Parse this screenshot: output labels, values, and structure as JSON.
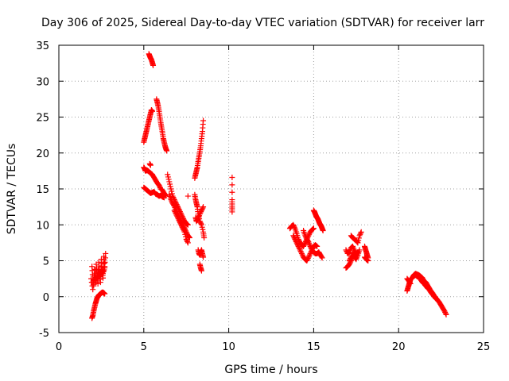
{
  "chart_data": {
    "type": "scatter",
    "title": "Day 306 of 2025, Sidereal Day-to-day VTEC variation (SDTVAR) for receiver larr",
    "xlabel": "GPS time / hours",
    "ylabel": "SDTVAR / TECUs",
    "xlim": [
      0,
      25
    ],
    "ylim": [
      -5,
      35
    ],
    "x_ticks": [
      0,
      5,
      10,
      15,
      20,
      25
    ],
    "y_ticks": [
      -5,
      0,
      5,
      10,
      15,
      20,
      25,
      30,
      35
    ],
    "grid": true,
    "marker": "+",
    "marker_color": "#ff0000",
    "series": [
      {
        "name": "SDTVAR",
        "segments": [
          {
            "x": [
              1.95,
              2.0,
              2.05,
              2.1,
              2.15,
              2.2,
              2.25,
              2.3,
              2.35,
              2.4,
              2.45,
              2.5,
              2.55,
              2.6,
              2.65,
              2.7,
              2.75
            ],
            "y": [
              4.2,
              2.5,
              1.5,
              3.8,
              2.2,
              4.5,
              3.0,
              1.8,
              4.8,
              3.2,
              2.0,
              5.2,
              3.6,
              2.6,
              5.6,
              4.2,
              6.0
            ]
          },
          {
            "x": [
              1.9,
              2.0,
              2.1,
              2.2,
              2.3,
              2.4,
              2.5,
              2.6,
              2.7
            ],
            "y": [
              2.5,
              1.0,
              3.0,
              2.0,
              3.5,
              2.8,
              3.8,
              3.2,
              4.0
            ]
          },
          {
            "x": [
              1.95,
              2.0,
              2.05,
              2.1,
              2.15,
              2.2,
              2.25,
              2.3,
              2.35,
              2.4,
              2.45,
              2.5,
              2.55,
              2.6,
              2.65,
              2.7
            ],
            "y": [
              -3.0,
              -2.6,
              -2.0,
              -1.5,
              -1.0,
              -0.6,
              -0.2,
              0.0,
              0.2,
              0.3,
              0.4,
              0.5,
              0.6,
              0.6,
              0.5,
              0.4
            ]
          },
          {
            "x": [
              5.0,
              5.05,
              5.1,
              5.15,
              5.2,
              5.25,
              5.3,
              5.35,
              5.4,
              5.45,
              5.5
            ],
            "y": [
              21.5,
              22.0,
              22.5,
              23.0,
              23.5,
              24.0,
              24.5,
              25.0,
              25.5,
              26.0,
              25.8
            ]
          },
          {
            "x": [
              5.3,
              5.35,
              5.4,
              5.45,
              5.5,
              5.55
            ],
            "y": [
              33.8,
              33.5,
              33.2,
              33.0,
              32.6,
              32.2
            ]
          },
          {
            "x": [
              5.75,
              5.8,
              5.85,
              5.9,
              5.95,
              6.0,
              6.05,
              6.1,
              6.15,
              6.2,
              6.25,
              6.3,
              6.35
            ],
            "y": [
              27.5,
              27.0,
              26.5,
              25.8,
              25.0,
              24.2,
              23.5,
              22.8,
              22.0,
              21.5,
              21.0,
              20.6,
              20.3
            ]
          },
          {
            "x": [
              5.0,
              5.05,
              5.1,
              5.2,
              5.3,
              5.4,
              5.5,
              5.6,
              5.7,
              5.8,
              5.9,
              6.0,
              6.1,
              6.2,
              6.3
            ],
            "y": [
              18.0,
              17.8,
              17.5,
              17.6,
              17.4,
              17.2,
              17.0,
              16.6,
              16.2,
              15.8,
              15.5,
              15.0,
              14.8,
              14.4,
              14.0
            ]
          },
          {
            "x": [
              5.35,
              5.4
            ],
            "y": [
              18.5,
              18.3
            ]
          },
          {
            "x": [
              5.0,
              5.1,
              5.2,
              5.3,
              5.4,
              5.5,
              5.6,
              5.7,
              5.8,
              5.9,
              6.0,
              6.1,
              6.2
            ],
            "y": [
              15.2,
              15.0,
              14.8,
              14.6,
              14.4,
              14.5,
              14.6,
              14.3,
              14.2,
              14.0,
              14.1,
              13.9,
              13.8
            ]
          },
          {
            "x": [
              6.4,
              6.5,
              6.6,
              6.7,
              6.8,
              6.9,
              7.0,
              7.1,
              7.2,
              7.3,
              7.4,
              7.5,
              7.6
            ],
            "y": [
              17.0,
              16.0,
              15.0,
              14.0,
              13.5,
              13.0,
              12.5,
              12.0,
              11.5,
              11.0,
              10.5,
              10.2,
              10.0
            ]
          },
          {
            "x": [
              6.5,
              6.6,
              6.7,
              6.8,
              6.9,
              7.0,
              7.1,
              7.2,
              7.3,
              7.4,
              7.5,
              7.6,
              7.7
            ],
            "y": [
              14.2,
              13.5,
              13.0,
              12.6,
              12.0,
              11.5,
              11.0,
              10.5,
              10.0,
              9.5,
              9.0,
              8.5,
              8.2
            ]
          },
          {
            "x": [
              6.8,
              6.9,
              7.0,
              7.1,
              7.2,
              7.3,
              7.4,
              7.5,
              7.6
            ],
            "y": [
              12.0,
              11.5,
              11.0,
              10.5,
              10.0,
              9.5,
              9.0,
              8.0,
              7.5
            ]
          },
          {
            "x": [
              7.6
            ],
            "y": [
              14.0
            ]
          },
          {
            "x": [
              8.0,
              8.05,
              8.1,
              8.15,
              8.2,
              8.25,
              8.3,
              8.35,
              8.4,
              8.45,
              8.5
            ],
            "y": [
              16.5,
              17.0,
              17.5,
              18.0,
              18.8,
              19.5,
              20.2,
              21.0,
              22.0,
              23.0,
              24.5
            ]
          },
          {
            "x": [
              8.0,
              8.05,
              8.1,
              8.15,
              8.2,
              8.3,
              8.4,
              8.5,
              8.55
            ],
            "y": [
              14.2,
              13.5,
              13.0,
              12.5,
              11.5,
              10.5,
              10.0,
              9.0,
              8.2
            ]
          },
          {
            "x": [
              8.05,
              8.1,
              8.2,
              8.3,
              8.4,
              8.5
            ],
            "y": [
              11.0,
              10.5,
              10.8,
              11.5,
              12.0,
              12.5
            ]
          },
          {
            "x": [
              8.2,
              8.25,
              8.3,
              8.35,
              8.4,
              8.45,
              8.5
            ],
            "y": [
              6.5,
              6.0,
              5.8,
              6.2,
              6.5,
              6.0,
              5.5
            ]
          },
          {
            "x": [
              8.3,
              8.35,
              8.4
            ],
            "y": [
              4.5,
              4.0,
              3.6
            ]
          },
          {
            "x": [
              10.2,
              10.2,
              10.2,
              10.2
            ],
            "y": [
              16.6,
              13.5,
              12.6,
              11.8
            ]
          },
          {
            "x": [
              13.6,
              13.7,
              13.8,
              13.9,
              14.0,
              14.1,
              14.2,
              14.3,
              14.4,
              14.5,
              14.6,
              14.7,
              14.8,
              14.9,
              15.0
            ],
            "y": [
              9.5,
              9.8,
              10.0,
              9.5,
              8.8,
              8.0,
              7.5,
              7.2,
              7.0,
              7.5,
              8.0,
              8.5,
              9.0,
              9.3,
              9.5
            ]
          },
          {
            "x": [
              13.8,
              13.9,
              14.0,
              14.1,
              14.2,
              14.3,
              14.4,
              14.5,
              14.6,
              14.7,
              14.8,
              14.9,
              15.0,
              15.1,
              15.2
            ],
            "y": [
              8.5,
              8.0,
              7.5,
              7.0,
              6.5,
              6.0,
              5.5,
              5.2,
              5.0,
              5.5,
              6.0,
              6.5,
              7.0,
              7.2,
              7.0
            ]
          },
          {
            "x": [
              14.4,
              14.5,
              14.6,
              14.7,
              14.8,
              14.9,
              15.0,
              15.1,
              15.2,
              15.3,
              15.4,
              15.5
            ],
            "y": [
              9.2,
              8.5,
              8.0,
              7.6,
              7.0,
              6.5,
              6.2,
              6.0,
              6.0,
              6.2,
              5.8,
              5.4
            ]
          },
          {
            "x": [
              15.0,
              15.05,
              15.1,
              15.15,
              15.2,
              15.25,
              15.3,
              15.35,
              15.4,
              15.45,
              15.5,
              15.55
            ],
            "y": [
              12.0,
              11.8,
              11.5,
              11.2,
              11.0,
              10.8,
              10.5,
              10.2,
              10.0,
              9.8,
              9.5,
              9.2
            ]
          },
          {
            "x": [
              16.9,
              17.0,
              17.1,
              17.2,
              17.3,
              17.4
            ],
            "y": [
              4.0,
              4.2,
              4.5,
              5.0,
              5.5,
              6.0
            ]
          },
          {
            "x": [
              16.9,
              17.0,
              17.1,
              17.2,
              17.3,
              17.4,
              17.5,
              17.6
            ],
            "y": [
              6.5,
              6.0,
              6.2,
              6.8,
              7.0,
              6.4,
              6.0,
              6.2
            ]
          },
          {
            "x": [
              17.2,
              17.3,
              17.4,
              17.5,
              17.6,
              17.7,
              17.8
            ],
            "y": [
              8.5,
              8.2,
              8.0,
              7.8,
              7.5,
              8.5,
              9.0
            ]
          },
          {
            "x": [
              17.1,
              17.2,
              17.3,
              17.4,
              17.5,
              17.6,
              17.7
            ],
            "y": [
              5.0,
              5.5,
              6.0,
              5.5,
              5.2,
              5.8,
              6.5
            ]
          },
          {
            "x": [
              18.0,
              18.05,
              18.1,
              18.15,
              18.2
            ],
            "y": [
              7.0,
              6.6,
              6.2,
              5.8,
              5.4
            ]
          },
          {
            "x": [
              18.0,
              18.1,
              18.2
            ],
            "y": [
              5.5,
              5.2,
              5.0
            ]
          },
          {
            "x": [
              20.5,
              20.55,
              20.6,
              20.65,
              20.7,
              20.75,
              20.8,
              20.85,
              20.9,
              20.95,
              21.0,
              21.1,
              21.2,
              21.3,
              21.4
            ],
            "y": [
              0.8,
              1.2,
              1.6,
              2.0,
              2.4,
              2.5,
              2.6,
              2.8,
              3.0,
              3.1,
              3.2,
              3.1,
              3.0,
              2.8,
              2.6
            ]
          },
          {
            "x": [
              20.5,
              20.6,
              20.7
            ],
            "y": [
              2.5,
              2.2,
              1.8
            ]
          },
          {
            "x": [
              21.0,
              21.1,
              21.2,
              21.3,
              21.4,
              21.5,
              21.6,
              21.7,
              21.8,
              21.9,
              22.0,
              22.1,
              22.2,
              22.3,
              22.4,
              22.5,
              22.6,
              22.7,
              22.8
            ],
            "y": [
              3.0,
              2.8,
              2.7,
              2.6,
              2.5,
              2.2,
              2.0,
              1.6,
              1.2,
              0.8,
              0.5,
              0.1,
              -0.2,
              -0.5,
              -0.8,
              -1.2,
              -1.6,
              -2.0,
              -2.5
            ]
          },
          {
            "x": [
              21.2,
              21.3,
              21.4,
              21.5,
              21.6,
              21.7,
              21.8,
              21.9,
              22.0,
              22.1,
              22.2
            ],
            "y": [
              2.6,
              2.4,
              2.0,
              1.8,
              1.5,
              1.2,
              1.0,
              0.6,
              0.3,
              0.0,
              -0.3
            ]
          }
        ]
      }
    ]
  }
}
